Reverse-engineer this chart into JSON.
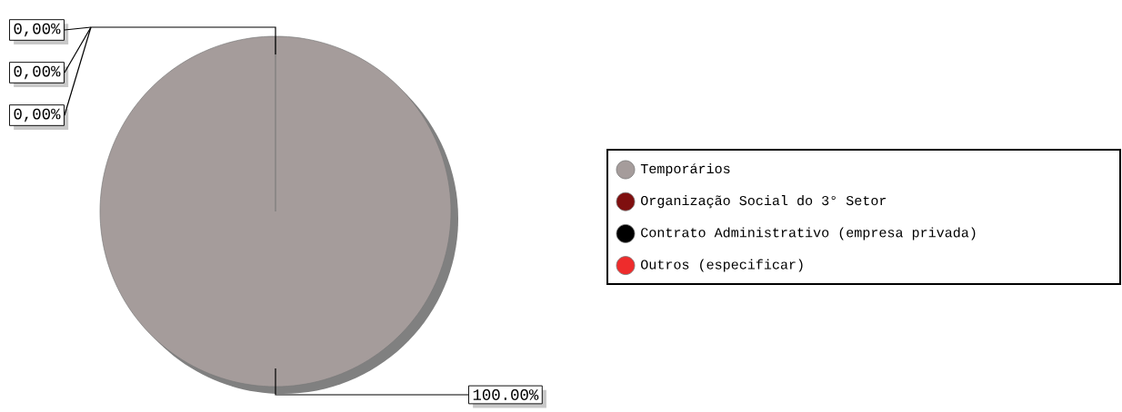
{
  "chart_data": {
    "type": "pie",
    "categories": [
      "Temporários",
      "Organização Social do 3° Setor",
      "Contrato Administrativo (empresa privada)",
      "Outros (especificar)"
    ],
    "values": [
      100,
      0,
      0,
      0
    ],
    "colors": [
      "#a59c9b",
      "#7f0f0f",
      "#000000",
      "#ee2c2c"
    ],
    "value_labels": [
      "100.00%",
      "0,00%",
      "0,00%",
      "0,00%"
    ],
    "legend": "right"
  }
}
